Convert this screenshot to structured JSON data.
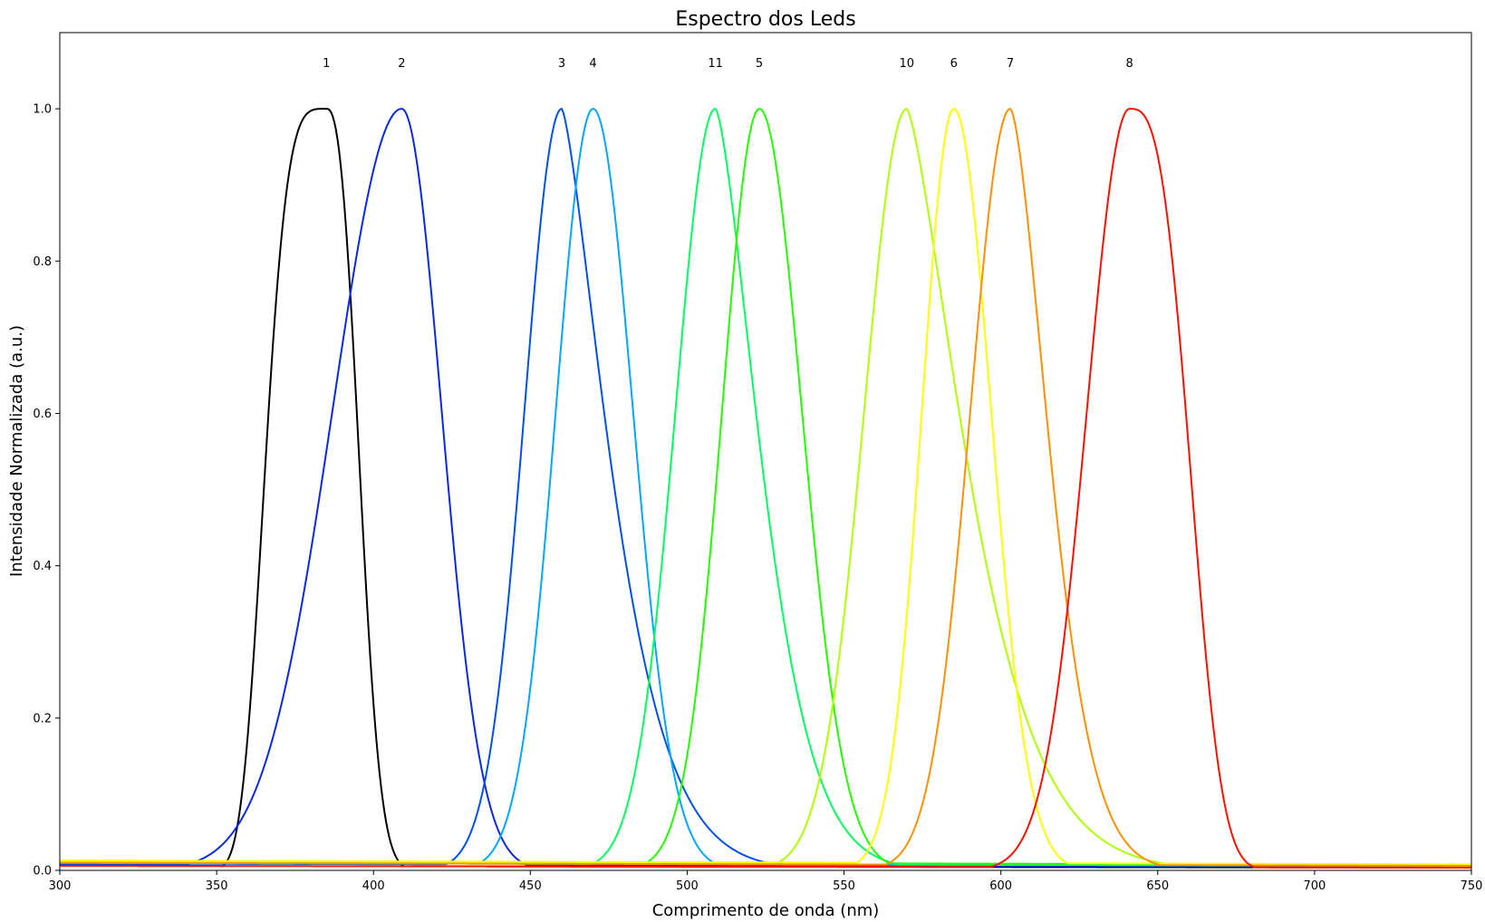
{
  "chart_data": {
    "type": "line",
    "title": "Espectro dos Leds",
    "xlabel": "Comprimento de onda (nm)",
    "ylabel": "Intensidade Normalizada (a.u.)",
    "xlim": [
      300,
      750
    ],
    "ylim": [
      0,
      1.1
    ],
    "xticks": [
      300,
      350,
      400,
      450,
      500,
      550,
      600,
      650,
      700,
      750
    ],
    "yticks": [
      0.0,
      0.2,
      0.4,
      0.6,
      0.8,
      1.0
    ],
    "xtick_labels": [
      "300",
      "350",
      "400",
      "450",
      "500",
      "550",
      "600",
      "650",
      "700",
      "750"
    ],
    "ytick_labels": [
      "0.0",
      "0.2",
      "0.4",
      "0.6",
      "0.8",
      "1.0"
    ],
    "grid": false,
    "legend": "none",
    "series": [
      {
        "label": "1",
        "color": "#000000",
        "peak_x": 385,
        "peak_y": 1.0
      },
      {
        "label": "2",
        "color": "#0a28e8",
        "peak_x": 409,
        "peak_y": 1.0
      },
      {
        "label": "3",
        "color": "#0050f0",
        "peak_x": 460,
        "peak_y": 1.0
      },
      {
        "label": "4",
        "color": "#00a8ff",
        "peak_x": 470,
        "peak_y": 1.0
      },
      {
        "label": "11",
        "color": "#00ff60",
        "peak_x": 509,
        "peak_y": 1.0
      },
      {
        "label": "5",
        "color": "#22ff00",
        "peak_x": 523,
        "peak_y": 1.0
      },
      {
        "label": "10",
        "color": "#b0ff00",
        "peak_x": 570,
        "peak_y": 1.0
      },
      {
        "label": "6",
        "color": "#ffff00",
        "peak_x": 585,
        "peak_y": 1.0
      },
      {
        "label": "7",
        "color": "#ff9000",
        "peak_x": 603,
        "peak_y": 1.0
      },
      {
        "label": "8",
        "color": "#ff1000",
        "peak_x": 641,
        "peak_y": 1.0
      }
    ],
    "annotations": [
      {
        "text": "1",
        "x": 385,
        "y": 1.06
      },
      {
        "text": "2",
        "x": 409,
        "y": 1.06
      },
      {
        "text": "3",
        "x": 460,
        "y": 1.06
      },
      {
        "text": "4",
        "x": 470,
        "y": 1.06
      },
      {
        "text": "11",
        "x": 509,
        "y": 1.06
      },
      {
        "text": "5",
        "x": 523,
        "y": 1.06
      },
      {
        "text": "10",
        "x": 570,
        "y": 1.06
      },
      {
        "text": "6",
        "x": 585,
        "y": 1.06
      },
      {
        "text": "7",
        "x": 603,
        "y": 1.06
      },
      {
        "text": "8",
        "x": 641,
        "y": 1.06
      }
    ]
  }
}
